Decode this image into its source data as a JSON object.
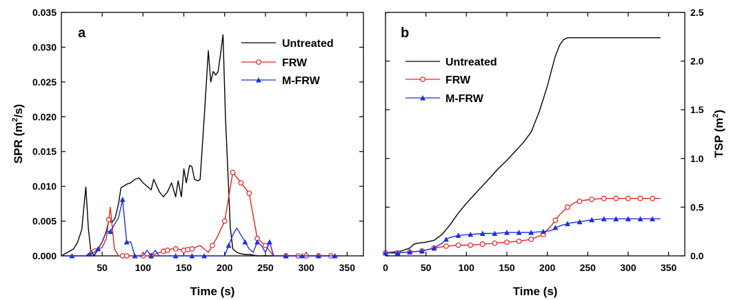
{
  "colors": {
    "untreated": "#000000",
    "frw": "#e8201c",
    "mfrw": "#1a2fe0"
  },
  "chart_data": [
    {
      "type": "line",
      "panel": "a",
      "xlabel": "Time (s)",
      "ylabel": "SPR (m",
      "ylabel_sup": "2",
      "ylabel_tail": "/s)",
      "xlim": [
        0,
        370
      ],
      "ylim": [
        0,
        0.035
      ],
      "xticks": [
        50,
        100,
        150,
        200,
        250,
        300,
        350
      ],
      "xtick_labels": [
        "50",
        "100",
        "150",
        "200",
        "250",
        "300",
        "350"
      ],
      "yticks": [
        0,
        0.005,
        0.01,
        0.015,
        0.02,
        0.025,
        0.03,
        0.035
      ],
      "ytick_labels": [
        "0.000",
        "0.005",
        "0.010",
        "0.015",
        "0.020",
        "0.025",
        "0.030",
        "0.035"
      ],
      "legend_position": "top-right",
      "series": [
        {
          "name": "Untreated",
          "color": "#000000",
          "marker": "none",
          "x": [
            0,
            15,
            20,
            25,
            28,
            30,
            33,
            36,
            40,
            45,
            50,
            55,
            58,
            62,
            66,
            70,
            73,
            76,
            80,
            85,
            90,
            95,
            100,
            105,
            110,
            113,
            117,
            120,
            125,
            130,
            135,
            140,
            143,
            147,
            150,
            153,
            157,
            160,
            163,
            167,
            170,
            175,
            180,
            183,
            186,
            189,
            192,
            195,
            198,
            201,
            204,
            207,
            210,
            215,
            220,
            225,
            230,
            235,
            240,
            245,
            250,
            255,
            260,
            270,
            280,
            290,
            300,
            310,
            320,
            330,
            340
          ],
          "y": [
            0,
            0.001,
            0.002,
            0.0038,
            0.0075,
            0.0099,
            0.004,
            0.0008,
            0,
            0.001,
            0.002,
            0.0035,
            0.005,
            0.0048,
            0.0055,
            0.0075,
            0.0098,
            0.01,
            0.0103,
            0.0105,
            0.011,
            0.0112,
            0.0105,
            0.01,
            0.0095,
            0.011,
            0.01,
            0.0092,
            0.0085,
            0.0092,
            0.0105,
            0.0085,
            0.0108,
            0.0085,
            0.0125,
            0.0105,
            0.013,
            0.0128,
            0.011,
            0.0108,
            0.011,
            0.02,
            0.0295,
            0.025,
            0.0265,
            0.026,
            0.0265,
            0.029,
            0.0318,
            0.02,
            0.012,
            0.004,
            0.001,
            0.0005,
            0.0003,
            0.0002,
            0.0002,
            0.0001,
            0,
            0,
            0,
            0,
            0,
            0,
            0,
            0,
            0,
            0,
            0,
            0,
            0
          ]
        },
        {
          "name": "FRW",
          "color": "#e8201c",
          "marker": "circle",
          "x": [
            0,
            10,
            20,
            30,
            35,
            40,
            45,
            50,
            55,
            60,
            65,
            70,
            75,
            80,
            90,
            100,
            110,
            120,
            130,
            135,
            140,
            150,
            160,
            170,
            180,
            190,
            200,
            210,
            220,
            230,
            240,
            250,
            260,
            270,
            280,
            290,
            300,
            310,
            320,
            330,
            340
          ],
          "y": [
            0,
            0,
            0,
            0,
            0.0005,
            0.001,
            0.001,
            0.0012,
            0.0025,
            0.007,
            0.001,
            0,
            0,
            0,
            0,
            0,
            0,
            0.0005,
            0.0008,
            0.001,
            0.001,
            0.0008,
            0.001,
            0.0015,
            0.0005,
            0.0025,
            0.005,
            0.012,
            0.0105,
            0.009,
            0.0025,
            0.0015,
            0,
            0,
            0,
            0,
            0,
            0,
            0,
            0,
            0
          ],
          "marker_x": [
            58,
            75,
            80,
            100,
            110,
            125,
            130,
            140,
            150,
            155,
            160,
            185,
            200,
            210,
            220,
            230,
            240,
            250,
            275,
            290,
            300,
            315,
            330
          ]
        },
        {
          "name": "M-FRW",
          "color": "#1a2fe0",
          "marker": "triangle",
          "x": [
            0,
            20,
            30,
            40,
            45,
            50,
            55,
            60,
            65,
            70,
            75,
            80,
            85,
            90,
            95,
            100,
            105,
            110,
            115,
            120,
            125,
            130,
            140,
            150,
            160,
            170,
            180,
            190,
            200,
            210,
            215,
            220,
            225,
            230,
            235,
            240,
            245,
            250,
            255,
            260,
            270,
            280,
            290,
            300,
            310,
            320,
            330,
            340
          ],
          "y": [
            0,
            0,
            0,
            0.0005,
            0.001,
            0.002,
            0.0035,
            0.0035,
            0.0045,
            0.0055,
            0.0081,
            0.002,
            0.002,
            0,
            0,
            0,
            0.0008,
            0,
            0.0008,
            0,
            0,
            0,
            0,
            0,
            0,
            0,
            0,
            0,
            0,
            0.003,
            0.004,
            0.003,
            0.002,
            0.001,
            0.0005,
            0.002,
            0.0015,
            0.0005,
            0.002,
            0,
            0,
            0,
            0,
            0,
            0,
            0,
            0,
            0
          ],
          "marker_x": [
            13,
            35,
            45,
            60,
            75,
            80,
            90,
            110,
            140,
            160,
            175,
            205,
            225,
            240,
            255,
            275,
            295,
            315,
            335
          ]
        }
      ]
    },
    {
      "type": "line",
      "panel": "b",
      "xlabel": "Time (s)",
      "ylabel": "TSP (m",
      "ylabel_sup": "2",
      "ylabel_tail": ")",
      "xlim": [
        0,
        370
      ],
      "ylim": [
        0,
        2.5
      ],
      "xticks": [
        0,
        50,
        100,
        150,
        200,
        250,
        300,
        350
      ],
      "xtick_labels": [
        "0",
        "50",
        "100",
        "150",
        "200",
        "250",
        "300",
        "350"
      ],
      "yticks": [
        0,
        0.5,
        1,
        1.5,
        2,
        2.5
      ],
      "ytick_labels": [
        "0.0",
        "0.5",
        "1.0",
        "1.5",
        "2.0",
        "2.5"
      ],
      "legend_position": "top-left",
      "series": [
        {
          "name": "Untreated",
          "color": "#000000",
          "marker": "none",
          "x": [
            0,
            10,
            20,
            30,
            35,
            40,
            50,
            60,
            70,
            80,
            90,
            100,
            110,
            120,
            130,
            140,
            150,
            160,
            170,
            180,
            190,
            200,
            205,
            210,
            215,
            220,
            225,
            230,
            240,
            260,
            300,
            340
          ],
          "y": [
            0.03,
            0.04,
            0.05,
            0.08,
            0.12,
            0.13,
            0.14,
            0.16,
            0.22,
            0.32,
            0.44,
            0.54,
            0.63,
            0.72,
            0.81,
            0.9,
            0.98,
            1.07,
            1.16,
            1.27,
            1.48,
            1.74,
            1.9,
            2.05,
            2.16,
            2.22,
            2.24,
            2.24,
            2.24,
            2.24,
            2.24,
            2.24
          ]
        },
        {
          "name": "FRW",
          "color": "#e8201c",
          "marker": "circle",
          "x": [
            0,
            15,
            30,
            45,
            60,
            75,
            90,
            105,
            120,
            135,
            150,
            165,
            180,
            195,
            205,
            215,
            225,
            235,
            245,
            255,
            270,
            285,
            300,
            315,
            330,
            340
          ],
          "y": [
            0.03,
            0.03,
            0.04,
            0.05,
            0.08,
            0.1,
            0.11,
            0.11,
            0.12,
            0.13,
            0.14,
            0.15,
            0.17,
            0.22,
            0.31,
            0.42,
            0.5,
            0.55,
            0.57,
            0.58,
            0.59,
            0.59,
            0.59,
            0.59,
            0.59,
            0.59
          ],
          "marker_x": [
            0,
            15,
            30,
            45,
            60,
            75,
            90,
            105,
            120,
            135,
            150,
            165,
            180,
            195,
            210,
            225,
            240,
            255,
            270,
            285,
            300,
            315,
            330
          ]
        },
        {
          "name": "M-FRW",
          "color": "#1a2fe0",
          "marker": "triangle",
          "x": [
            0,
            15,
            30,
            45,
            60,
            70,
            75,
            80,
            90,
            105,
            120,
            135,
            150,
            165,
            180,
            195,
            205,
            210,
            220,
            230,
            240,
            255,
            270,
            285,
            300,
            315,
            330,
            340
          ],
          "y": [
            0.03,
            0.03,
            0.04,
            0.05,
            0.08,
            0.13,
            0.17,
            0.19,
            0.21,
            0.22,
            0.23,
            0.23,
            0.24,
            0.24,
            0.24,
            0.25,
            0.26,
            0.29,
            0.32,
            0.34,
            0.35,
            0.37,
            0.38,
            0.38,
            0.38,
            0.38,
            0.38,
            0.38
          ],
          "marker_x": [
            0,
            15,
            30,
            45,
            60,
            75,
            90,
            105,
            120,
            135,
            150,
            165,
            180,
            195,
            210,
            225,
            240,
            255,
            270,
            285,
            300,
            315,
            330
          ]
        }
      ]
    }
  ]
}
